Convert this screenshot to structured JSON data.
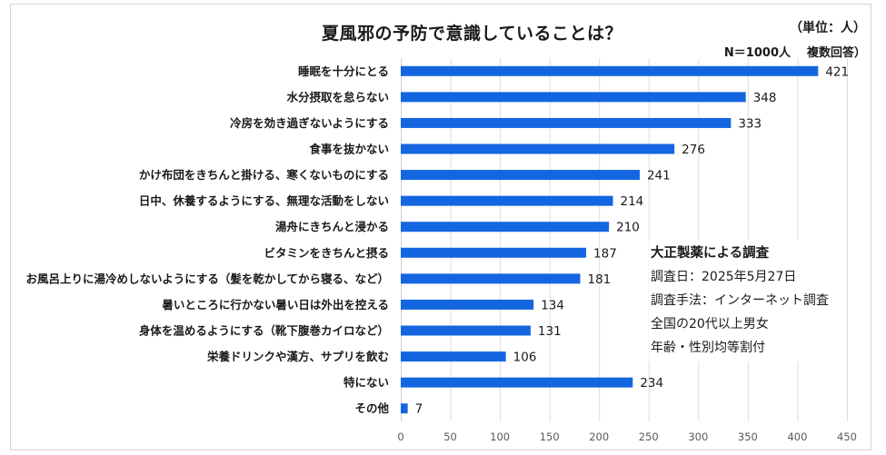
{
  "chart_data": {
    "type": "bar",
    "orientation": "horizontal",
    "title": "夏風邪の予防で意識していることは？",
    "unit_label": "（単位：人）",
    "sample_label": "N＝1000人",
    "answer_type_label": "複数回答）",
    "xlabel": "",
    "ylabel": "",
    "xlim": [
      0,
      450
    ],
    "x_ticks": [
      0,
      50,
      100,
      150,
      200,
      250,
      300,
      350,
      400,
      450
    ],
    "grid": true,
    "bar_color": "#1466e0",
    "categories": [
      "睡眠を十分にとる",
      "水分摂取を怠らない",
      "冷房を効き過ぎないようにする",
      "食事を抜かない",
      "かけ布団をきちんと掛ける、寒くないものにする",
      "日中、休養するようにする、無理な活動をしない",
      "湯舟にきちんと浸かる",
      "ビタミンをきちんと摂る",
      "お風呂上りに湯冷めしないようにする（髪を乾かしてから寝る、など）",
      "暑いところに行かない暑い日は外出を控える",
      "身体を温めるようにする（靴下腹巻カイロなど）",
      "栄養ドリンクや漢方、サプリを飲む",
      "特にない",
      "その他"
    ],
    "values": [
      421,
      348,
      333,
      276,
      241,
      214,
      210,
      187,
      181,
      134,
      131,
      106,
      234,
      7
    ]
  },
  "note": {
    "heading": "大正製薬による調査",
    "lines": [
      "調査日：2025年5月27日",
      "調査手法：インターネット調査",
      "全国の20代以上男女",
      "年齢・性別均等割付"
    ]
  }
}
